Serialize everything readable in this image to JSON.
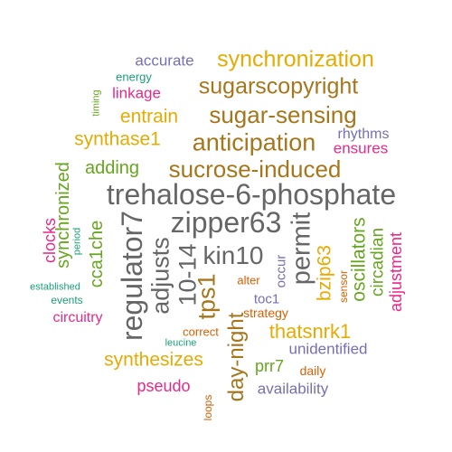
{
  "palette": {
    "green": "#1b9e77",
    "orange": "#d95f02",
    "purple": "#7570b3",
    "magenta": "#e7298a",
    "lime": "#66a61e",
    "gold": "#e6ab02",
    "brown": "#a6761d",
    "gray": "#666666"
  },
  "words": [
    {
      "text": "accurate",
      "color": "purple"
    },
    {
      "text": "synchronization",
      "color": "gold"
    },
    {
      "text": "energy",
      "color": "green"
    },
    {
      "text": "sugarscopyright",
      "color": "brown"
    },
    {
      "text": "timing",
      "color": "lime"
    },
    {
      "text": "linkage",
      "color": "magenta"
    },
    {
      "text": "entrain",
      "color": "gold"
    },
    {
      "text": "sugar-sensing",
      "color": "brown"
    },
    {
      "text": "rhythms",
      "color": "purple"
    },
    {
      "text": "synthase1",
      "color": "gold"
    },
    {
      "text": "anticipation",
      "color": "brown"
    },
    {
      "text": "ensures",
      "color": "magenta"
    },
    {
      "text": "adding",
      "color": "lime"
    },
    {
      "text": "sucrose-induced",
      "color": "brown"
    },
    {
      "text": "synchronized",
      "color": "lime"
    },
    {
      "text": "trehalose-6-phosphate",
      "color": "gray"
    },
    {
      "text": "clocks",
      "color": "magenta"
    },
    {
      "text": "period",
      "color": "green"
    },
    {
      "text": "cca1che",
      "color": "lime"
    },
    {
      "text": "regulator7",
      "color": "gray"
    },
    {
      "text": "zipper63",
      "color": "gray"
    },
    {
      "text": "adjusts",
      "color": "gray"
    },
    {
      "text": "10-14",
      "color": "gray"
    },
    {
      "text": "kin10",
      "color": "gray"
    },
    {
      "text": "permit",
      "color": "gray"
    },
    {
      "text": "oscillators",
      "color": "lime"
    },
    {
      "text": "circadian",
      "color": "lime"
    },
    {
      "text": "adjustment",
      "color": "magenta"
    },
    {
      "text": "tps1",
      "color": "brown"
    },
    {
      "text": "bzip63",
      "color": "gold"
    },
    {
      "text": "occur",
      "color": "purple"
    },
    {
      "text": "alter",
      "color": "orange"
    },
    {
      "text": "sensor",
      "color": "orange"
    },
    {
      "text": "established",
      "color": "green"
    },
    {
      "text": "events",
      "color": "green"
    },
    {
      "text": "toc1",
      "color": "purple"
    },
    {
      "text": "strategy",
      "color": "orange"
    },
    {
      "text": "day-night",
      "color": "brown"
    },
    {
      "text": "circuitry",
      "color": "magenta"
    },
    {
      "text": "thatsnrk1",
      "color": "gold"
    },
    {
      "text": "correct",
      "color": "orange"
    },
    {
      "text": "leucine",
      "color": "green"
    },
    {
      "text": "unidentified",
      "color": "purple"
    },
    {
      "text": "synthesizes",
      "color": "gold"
    },
    {
      "text": "prr7",
      "color": "lime"
    },
    {
      "text": "daily",
      "color": "orange"
    },
    {
      "text": "pseudo",
      "color": "magenta"
    },
    {
      "text": "availability",
      "color": "purple"
    },
    {
      "text": "loops",
      "color": "orange"
    }
  ]
}
